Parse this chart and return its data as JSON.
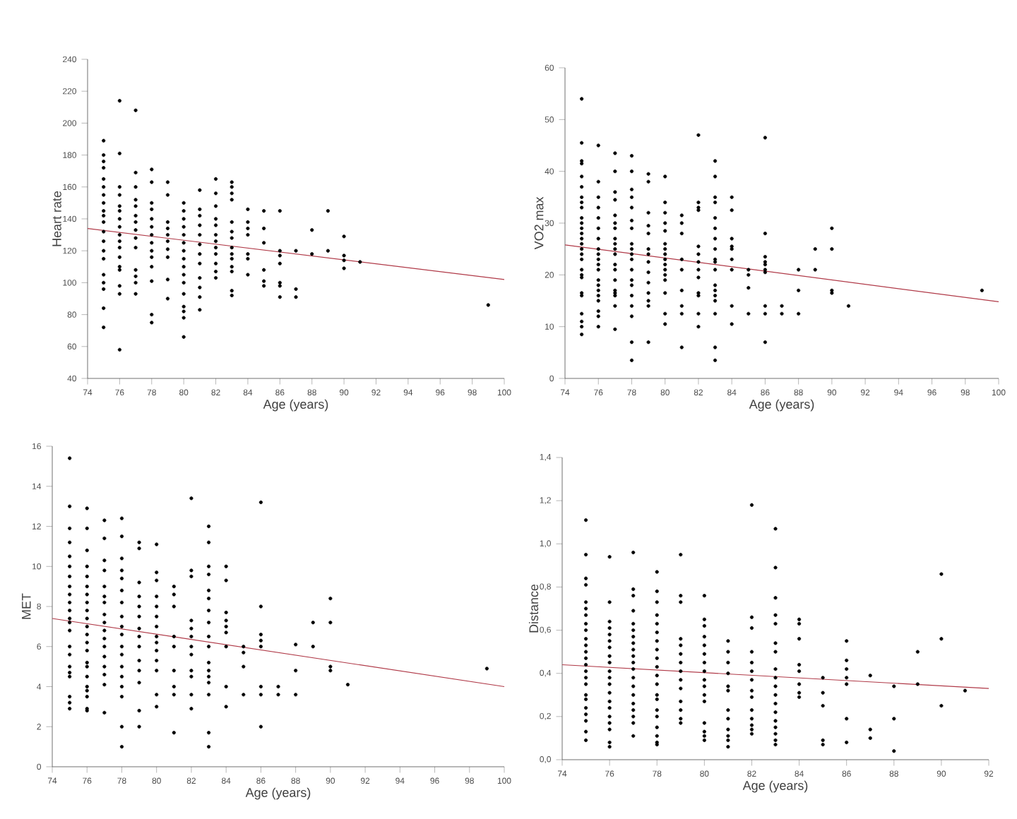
{
  "chart_data": [
    {
      "type": "scatter",
      "xlabel": "Age (years)",
      "ylabel": "Heart rate",
      "xlim": [
        74,
        100
      ],
      "ylim": [
        40,
        240
      ],
      "xticks": [
        74,
        76,
        78,
        80,
        82,
        84,
        86,
        88,
        90,
        92,
        94,
        96,
        98,
        100
      ],
      "yticks": [
        40,
        60,
        80,
        100,
        120,
        140,
        160,
        180,
        200,
        220,
        240
      ],
      "series": [
        {
          "color": "#000000",
          "marker": "circle",
          "x": [
            75,
            75,
            75,
            75,
            75,
            75,
            75,
            75,
            75,
            75,
            75,
            75,
            75,
            75,
            75,
            75,
            75,
            75,
            75,
            75,
            76,
            76,
            76,
            76,
            76,
            76,
            76,
            76,
            76,
            76,
            76,
            76,
            76,
            76,
            76,
            76,
            76,
            77,
            77,
            77,
            77,
            77,
            77,
            77,
            77,
            77,
            77,
            77,
            77,
            77,
            77,
            78,
            78,
            78,
            78,
            78,
            78,
            78,
            78,
            78,
            78,
            78,
            78,
            78,
            78,
            79,
            79,
            79,
            79,
            79,
            79,
            79,
            79,
            79,
            79,
            80,
            80,
            80,
            80,
            80,
            80,
            80,
            80,
            80,
            80,
            80,
            80,
            80,
            80,
            80,
            80,
            81,
            81,
            81,
            81,
            81,
            81,
            81,
            81,
            81,
            81,
            81,
            81,
            82,
            82,
            82,
            82,
            82,
            82,
            82,
            82,
            82,
            82,
            82,
            82,
            83,
            83,
            83,
            83,
            83,
            83,
            83,
            83,
            83,
            83,
            83,
            83,
            83,
            83,
            84,
            84,
            84,
            84,
            84,
            84,
            84,
            85,
            85,
            85,
            85,
            85,
            85,
            86,
            86,
            86,
            86,
            86,
            86,
            86,
            87,
            87,
            87,
            88,
            88,
            89,
            89,
            90,
            90,
            90,
            90,
            91,
            99
          ],
          "values": [
            189,
            180,
            176,
            172,
            165,
            160,
            155,
            150,
            145,
            142,
            138,
            132,
            126,
            120,
            115,
            105,
            100,
            96,
            84,
            72,
            214,
            181,
            160,
            155,
            148,
            145,
            140,
            135,
            130,
            126,
            122,
            116,
            110,
            108,
            98,
            93,
            58,
            208,
            169,
            160,
            152,
            148,
            142,
            138,
            133,
            128,
            122,
            108,
            104,
            100,
            93,
            171,
            163,
            150,
            146,
            140,
            135,
            130,
            125,
            120,
            116,
            110,
            101,
            80,
            75,
            163,
            155,
            138,
            134,
            130,
            126,
            121,
            116,
            102,
            90,
            150,
            145,
            140,
            135,
            130,
            125,
            120,
            115,
            110,
            105,
            100,
            93,
            85,
            82,
            78,
            66,
            158,
            146,
            142,
            136,
            130,
            124,
            118,
            112,
            103,
            97,
            91,
            83,
            165,
            156,
            148,
            140,
            136,
            130,
            126,
            122,
            118,
            112,
            107,
            103,
            163,
            160,
            156,
            152,
            138,
            132,
            128,
            122,
            118,
            115,
            110,
            107,
            95,
            92,
            146,
            138,
            134,
            130,
            118,
            115,
            105,
            145,
            134,
            125,
            108,
            101,
            98,
            145,
            120,
            117,
            112,
            100,
            98,
            91,
            120,
            96,
            91,
            133,
            118,
            145,
            120,
            129,
            117,
            114,
            109,
            113,
            86
          ]
        },
        {
          "type": "line",
          "color": "#b03a48",
          "x": [
            74,
            100
          ],
          "values": [
            134,
            102
          ]
        }
      ]
    },
    {
      "type": "scatter",
      "xlabel": "Age (years)",
      "ylabel": "VO2 max",
      "xlim": [
        74,
        100
      ],
      "ylim": [
        0,
        60
      ],
      "xticks": [
        74,
        76,
        78,
        80,
        82,
        84,
        86,
        88,
        90,
        92,
        94,
        96,
        98,
        100
      ],
      "yticks": [
        0,
        10,
        20,
        30,
        40,
        50,
        60
      ],
      "series": [
        {
          "color": "#000000",
          "marker": "circle",
          "x": [
            75,
            75,
            75,
            75,
            75,
            75,
            75,
            75,
            75,
            75,
            75,
            75,
            75,
            75,
            75,
            75,
            75,
            75,
            75,
            75,
            75,
            75,
            75,
            75,
            75,
            75,
            75,
            76,
            76,
            76,
            76,
            76,
            76,
            76,
            76,
            76,
            76,
            76,
            76,
            76,
            76,
            76,
            76,
            76,
            76,
            76,
            76,
            77,
            77,
            77,
            77,
            77,
            77,
            77,
            77,
            77,
            77,
            77,
            77,
            77,
            77,
            77,
            77,
            77,
            77,
            77,
            78,
            78,
            78,
            78,
            78,
            78,
            78,
            78,
            78,
            78,
            78,
            78,
            78,
            78,
            78,
            78,
            78,
            78,
            78,
            79,
            79,
            79,
            79,
            79,
            79,
            79,
            79,
            79,
            79,
            79,
            79,
            79,
            79,
            80,
            80,
            80,
            80,
            80,
            80,
            80,
            80,
            80,
            80,
            80,
            80,
            80,
            80,
            80,
            80,
            81,
            81,
            81,
            81,
            81,
            81,
            81,
            81,
            81,
            82,
            82,
            82,
            82,
            82,
            82,
            82,
            82,
            82,
            82,
            82,
            82,
            82,
            83,
            83,
            83,
            83,
            83,
            83,
            83,
            83,
            83,
            83,
            83,
            83,
            83,
            83,
            83,
            83,
            83,
            83,
            84,
            84,
            84,
            84,
            84,
            84,
            84,
            84,
            84,
            85,
            85,
            85,
            85,
            86,
            86,
            86,
            86,
            86,
            86,
            86,
            86,
            86,
            86,
            87,
            87,
            88,
            88,
            88,
            89,
            89,
            90,
            90,
            90,
            90,
            91,
            99
          ],
          "values": [
            54,
            45.5,
            42,
            41.5,
            39,
            37,
            35,
            34,
            33,
            31,
            30,
            29,
            28,
            27,
            26,
            25,
            24,
            23,
            21,
            20,
            19.5,
            16.5,
            16,
            12.5,
            11,
            10,
            8.5,
            45,
            38,
            35,
            33,
            31,
            29,
            27,
            25,
            24,
            23,
            22,
            21,
            19,
            18,
            17,
            16,
            15,
            13,
            12,
            10,
            43.5,
            40,
            36,
            34.5,
            31.5,
            30,
            29,
            27,
            26,
            25,
            24,
            22,
            21,
            19,
            17,
            16.5,
            16,
            14,
            9.5,
            43,
            40,
            36.5,
            35,
            33,
            30.5,
            29,
            26,
            25,
            24,
            23,
            21,
            19,
            18,
            16,
            14,
            12,
            7,
            3.5,
            39.5,
            38,
            32,
            29.5,
            28,
            25,
            24,
            22.5,
            20.5,
            18.5,
            16.5,
            15,
            14,
            7,
            39,
            34,
            32,
            30,
            28.5,
            26,
            25,
            24,
            23,
            22,
            21,
            20,
            19,
            16.5,
            12.5,
            10.5,
            31.5,
            30,
            28,
            23,
            21,
            17,
            14,
            12.5,
            6,
            47,
            34,
            33,
            32.5,
            25.5,
            24,
            22.5,
            21,
            19.5,
            16.5,
            16,
            12.5,
            10,
            42,
            39,
            35,
            34,
            31,
            29,
            27,
            25,
            23,
            22.5,
            21,
            18,
            17,
            16,
            15,
            12.5,
            6,
            3.5,
            35,
            32.5,
            27,
            25.5,
            25,
            23,
            21,
            14,
            10.5,
            21,
            20,
            17.5,
            12.5,
            46.5,
            28,
            23.5,
            22.5,
            22,
            21,
            20.5,
            14,
            12.5,
            7,
            14,
            12.5,
            21,
            17,
            12.5,
            25,
            21,
            29,
            25,
            17,
            16.5,
            14,
            17
          ]
        },
        {
          "type": "line",
          "color": "#b03a48",
          "x": [
            74,
            100
          ],
          "values": [
            25.8,
            14.8
          ]
        }
      ]
    },
    {
      "type": "scatter",
      "xlabel": "Age (years)",
      "ylabel": "MET",
      "xlim": [
        74,
        100
      ],
      "ylim": [
        0,
        16
      ],
      "xticks": [
        74,
        76,
        78,
        80,
        82,
        84,
        86,
        88,
        90,
        92,
        94,
        96,
        98,
        100
      ],
      "yticks": [
        0,
        2,
        4,
        6,
        8,
        10,
        12,
        14,
        16
      ],
      "series": [
        {
          "color": "#000000",
          "marker": "circle",
          "x": [
            75,
            75,
            75,
            75,
            75,
            75,
            75,
            75,
            75,
            75,
            75,
            75,
            75,
            75,
            75,
            75,
            75,
            75,
            75,
            75,
            75,
            75,
            76,
            76,
            76,
            76,
            76,
            76,
            76,
            76,
            76,
            76,
            76,
            76,
            76,
            76,
            76,
            76,
            76,
            76,
            76,
            76,
            76,
            76,
            77,
            77,
            77,
            77,
            77,
            77,
            77,
            77,
            77,
            77,
            77,
            77,
            77,
            77,
            77,
            77,
            77,
            78,
            78,
            78,
            78,
            78,
            78,
            78,
            78,
            78,
            78,
            78,
            78,
            78,
            78,
            78,
            78,
            78,
            78,
            79,
            79,
            79,
            79,
            79,
            79,
            79,
            79,
            79,
            79,
            79,
            79,
            79,
            79,
            80,
            80,
            80,
            80,
            80,
            80,
            80,
            80,
            80,
            80,
            80,
            80,
            80,
            80,
            81,
            81,
            81,
            81,
            81,
            81,
            81,
            81,
            81,
            82,
            82,
            82,
            82,
            82,
            82,
            82,
            82,
            82,
            82,
            82,
            82,
            83,
            83,
            83,
            83,
            83,
            83,
            83,
            83,
            83,
            83,
            83,
            83,
            83,
            83,
            83,
            83,
            83,
            84,
            84,
            84,
            84,
            84,
            84,
            84,
            84,
            84,
            85,
            85,
            85,
            85,
            86,
            86,
            86,
            86,
            86,
            86,
            86,
            86,
            87,
            87,
            88,
            88,
            88,
            89,
            89,
            90,
            90,
            90,
            90,
            91,
            99
          ],
          "values": [
            15.4,
            13,
            11.9,
            11.2,
            10.5,
            10,
            9.5,
            9,
            8.6,
            8.2,
            7.8,
            7.4,
            7.2,
            6.8,
            6,
            5.6,
            5,
            4.7,
            4.5,
            3.5,
            3.2,
            2.9,
            12.9,
            11.9,
            10.8,
            10,
            9.5,
            9,
            8.6,
            8.2,
            7.8,
            7.4,
            7,
            6.6,
            6.2,
            5.8,
            5.2,
            5,
            4.5,
            4,
            3.8,
            3.5,
            2.9,
            2.8,
            12.3,
            11.4,
            10.3,
            9.8,
            9,
            8.5,
            8.2,
            7.6,
            7.2,
            6.8,
            6.4,
            6,
            5.5,
            5,
            4.6,
            4.1,
            2.7,
            12.4,
            11.5,
            10.4,
            9.8,
            9.4,
            8.8,
            8.2,
            7.5,
            7,
            6.6,
            6,
            5.6,
            5,
            4.5,
            4,
            3.5,
            2,
            1,
            11.2,
            10.9,
            9.2,
            8.5,
            8,
            7.5,
            6.9,
            6.5,
            6,
            5.3,
            4.8,
            4.2,
            2.8,
            2,
            11.1,
            9.7,
            9.3,
            8.5,
            8,
            7.5,
            7,
            6.5,
            6.2,
            5.8,
            5.3,
            4.8,
            3.6,
            3,
            9,
            8.6,
            8,
            6.5,
            6,
            4.8,
            4,
            3.6,
            1.7,
            13.4,
            9.8,
            9.5,
            7.3,
            6.9,
            6.5,
            6,
            5.6,
            4.8,
            4.5,
            3.6,
            2.9,
            12,
            11.2,
            10,
            9.6,
            8.8,
            8.4,
            7.8,
            7.2,
            6.5,
            6,
            5.2,
            4.8,
            4.5,
            4.2,
            3.6,
            1.7,
            1,
            10,
            9.3,
            7.7,
            7.3,
            7,
            6.7,
            6,
            4,
            3,
            6,
            5.7,
            5,
            3.6,
            13.2,
            8,
            6.6,
            6.3,
            6,
            4,
            3.6,
            2,
            4,
            3.6,
            6.1,
            4.8,
            3.6,
            7.2,
            6,
            8.4,
            7.2,
            5,
            4.8,
            4.1,
            4.9
          ]
        },
        {
          "type": "line",
          "color": "#b03a48",
          "x": [
            74,
            100
          ],
          "values": [
            7.4,
            4.0
          ]
        }
      ]
    },
    {
      "type": "scatter",
      "xlabel": "Age (years)",
      "ylabel": "Distance",
      "xlim": [
        74,
        92
      ],
      "ylim": [
        0,
        1.4
      ],
      "xticks": [
        74,
        76,
        78,
        80,
        82,
        84,
        86,
        88,
        90,
        92
      ],
      "yticks": [
        {
          "value": 0,
          "label": "0,0"
        },
        {
          "value": 0.2,
          "label": "0,2"
        },
        {
          "value": 0.4,
          "label": "0,4"
        },
        {
          "value": 0.6,
          "label": "0,6"
        },
        {
          "value": 0.8,
          "label": "0,8"
        },
        {
          "value": 1.0,
          "label": "1,0"
        },
        {
          "value": 1.2,
          "label": "1,2"
        },
        {
          "value": 1.4,
          "label": "1,4"
        }
      ],
      "series": [
        {
          "color": "#000000",
          "marker": "circle",
          "x": [
            75,
            75,
            75,
            75,
            75,
            75,
            75,
            75,
            75,
            75,
            75,
            75,
            75,
            75,
            75,
            75,
            75,
            75,
            75,
            75,
            75,
            75,
            75,
            75,
            76,
            76,
            76,
            76,
            76,
            76,
            76,
            76,
            76,
            76,
            76,
            76,
            76,
            76,
            76,
            76,
            76,
            76,
            76,
            76,
            77,
            77,
            77,
            77,
            77,
            77,
            77,
            77,
            77,
            77,
            77,
            77,
            77,
            77,
            77,
            77,
            77,
            77,
            77,
            77,
            78,
            78,
            78,
            78,
            78,
            78,
            78,
            78,
            78,
            78,
            78,
            78,
            78,
            78,
            78,
            78,
            78,
            78,
            78,
            78,
            79,
            79,
            79,
            79,
            79,
            79,
            79,
            79,
            79,
            79,
            79,
            79,
            79,
            79,
            80,
            80,
            80,
            80,
            80,
            80,
            80,
            80,
            80,
            80,
            80,
            80,
            80,
            80,
            80,
            80,
            81,
            81,
            81,
            81,
            81,
            81,
            81,
            81,
            81,
            81,
            81,
            81,
            82,
            82,
            82,
            82,
            82,
            82,
            82,
            82,
            82,
            82,
            82,
            82,
            82,
            82,
            83,
            83,
            83,
            83,
            83,
            83,
            83,
            83,
            83,
            83,
            83,
            83,
            83,
            83,
            83,
            83,
            83,
            83,
            84,
            84,
            84,
            84,
            84,
            84,
            84,
            84,
            85,
            85,
            85,
            85,
            85,
            86,
            86,
            86,
            86,
            86,
            86,
            86,
            87,
            87,
            87,
            88,
            88,
            88,
            89,
            89,
            90,
            90,
            90,
            91
          ],
          "values": [
            1.11,
            0.95,
            0.84,
            0.81,
            0.73,
            0.7,
            0.67,
            0.63,
            0.6,
            0.56,
            0.53,
            0.5,
            0.47,
            0.44,
            0.41,
            0.38,
            0.35,
            0.3,
            0.28,
            0.24,
            0.21,
            0.18,
            0.13,
            0.09,
            0.94,
            0.73,
            0.64,
            0.61,
            0.58,
            0.55,
            0.52,
            0.48,
            0.45,
            0.41,
            0.38,
            0.35,
            0.31,
            0.27,
            0.24,
            0.2,
            0.17,
            0.14,
            0.08,
            0.06,
            0.96,
            0.79,
            0.76,
            0.69,
            0.63,
            0.6,
            0.57,
            0.54,
            0.51,
            0.48,
            0.45,
            0.42,
            0.38,
            0.34,
            0.3,
            0.26,
            0.23,
            0.2,
            0.17,
            0.11,
            0.87,
            0.78,
            0.73,
            0.67,
            0.63,
            0.59,
            0.55,
            0.51,
            0.47,
            0.43,
            0.39,
            0.35,
            0.3,
            0.28,
            0.23,
            0.2,
            0.15,
            0.11,
            0.08,
            0.07,
            0.95,
            0.76,
            0.73,
            0.56,
            0.53,
            0.49,
            0.45,
            0.41,
            0.37,
            0.33,
            0.27,
            0.23,
            0.19,
            0.17,
            0.76,
            0.65,
            0.62,
            0.57,
            0.53,
            0.49,
            0.45,
            0.41,
            0.37,
            0.34,
            0.3,
            0.27,
            0.17,
            0.13,
            0.11,
            0.09,
            0.55,
            0.5,
            0.45,
            0.4,
            0.34,
            0.32,
            0.23,
            0.19,
            0.14,
            0.11,
            0.09,
            0.06,
            1.18,
            0.66,
            0.61,
            0.5,
            0.45,
            0.41,
            0.37,
            0.32,
            0.29,
            0.23,
            0.19,
            0.16,
            0.14,
            0.12,
            1.07,
            0.89,
            0.75,
            0.67,
            0.63,
            0.54,
            0.5,
            0.42,
            0.38,
            0.34,
            0.3,
            0.26,
            0.22,
            0.18,
            0.15,
            0.12,
            0.09,
            0.07,
            0.65,
            0.63,
            0.56,
            0.44,
            0.41,
            0.35,
            0.31,
            0.29,
            0.38,
            0.31,
            0.25,
            0.09,
            0.07,
            0.55,
            0.46,
            0.42,
            0.38,
            0.35,
            0.19,
            0.08,
            0.39,
            0.14,
            0.1,
            0.34,
            0.19,
            0.04,
            0.5,
            0.35,
            0.86,
            0.56,
            0.25,
            0.32
          ]
        },
        {
          "type": "line",
          "color": "#b03a48",
          "x": [
            74,
            92
          ],
          "values": [
            0.44,
            0.33
          ]
        }
      ]
    }
  ]
}
